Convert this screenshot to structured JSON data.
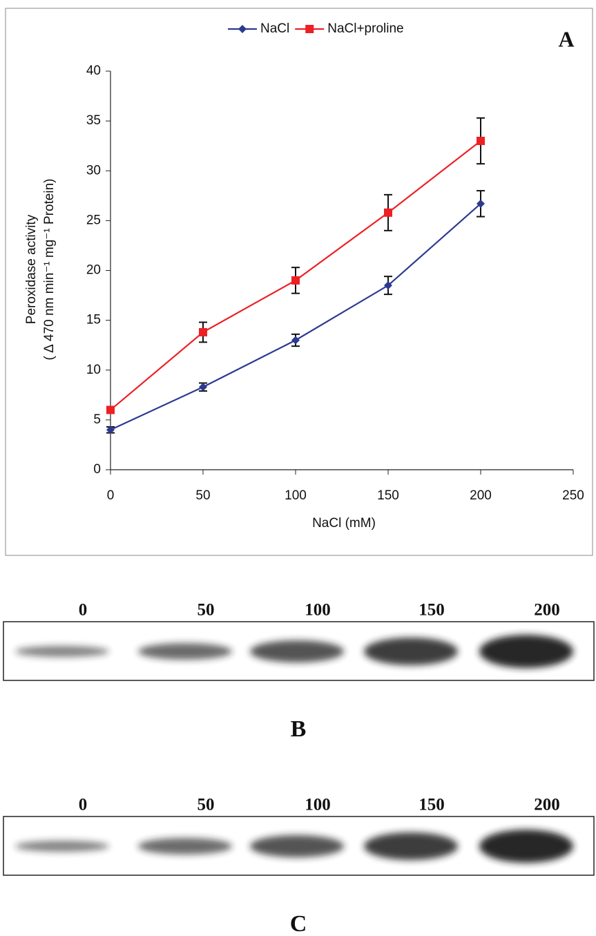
{
  "chart_data": {
    "type": "line",
    "panel": "A",
    "x": [
      0,
      50,
      100,
      150,
      200
    ],
    "series": [
      {
        "name": "NaCl",
        "color": "#2b3990",
        "marker": "diamond",
        "values": [
          4,
          8.3,
          13,
          18.5,
          26.7
        ],
        "errors": [
          0.3,
          0.4,
          0.6,
          0.9,
          1.3
        ]
      },
      {
        "name": "NaCl+proline",
        "color": "#ed2024",
        "marker": "square",
        "values": [
          6,
          13.8,
          19,
          25.8,
          33
        ],
        "errors": [
          0.3,
          1.0,
          1.3,
          1.8,
          2.3
        ]
      }
    ],
    "xlabel": "NaCl (mM)",
    "ylabel": [
      "Peroxidase activity",
      "( Δ 470 nm min⁻¹ mg⁻¹ Protein)"
    ],
    "xlim": [
      0,
      250
    ],
    "xticks": [
      0,
      50,
      100,
      150,
      200,
      250
    ],
    "ylim": [
      0,
      40
    ],
    "yticks": [
      0,
      5,
      10,
      15,
      20,
      25,
      30,
      35,
      40
    ],
    "grid": false,
    "legend": "top"
  },
  "gels": [
    {
      "panel": "B",
      "lanes": [
        "0",
        "50",
        "100",
        "150",
        "200"
      ]
    },
    {
      "panel": "C",
      "lanes": [
        "0",
        "50",
        "100",
        "150",
        "200"
      ]
    }
  ]
}
